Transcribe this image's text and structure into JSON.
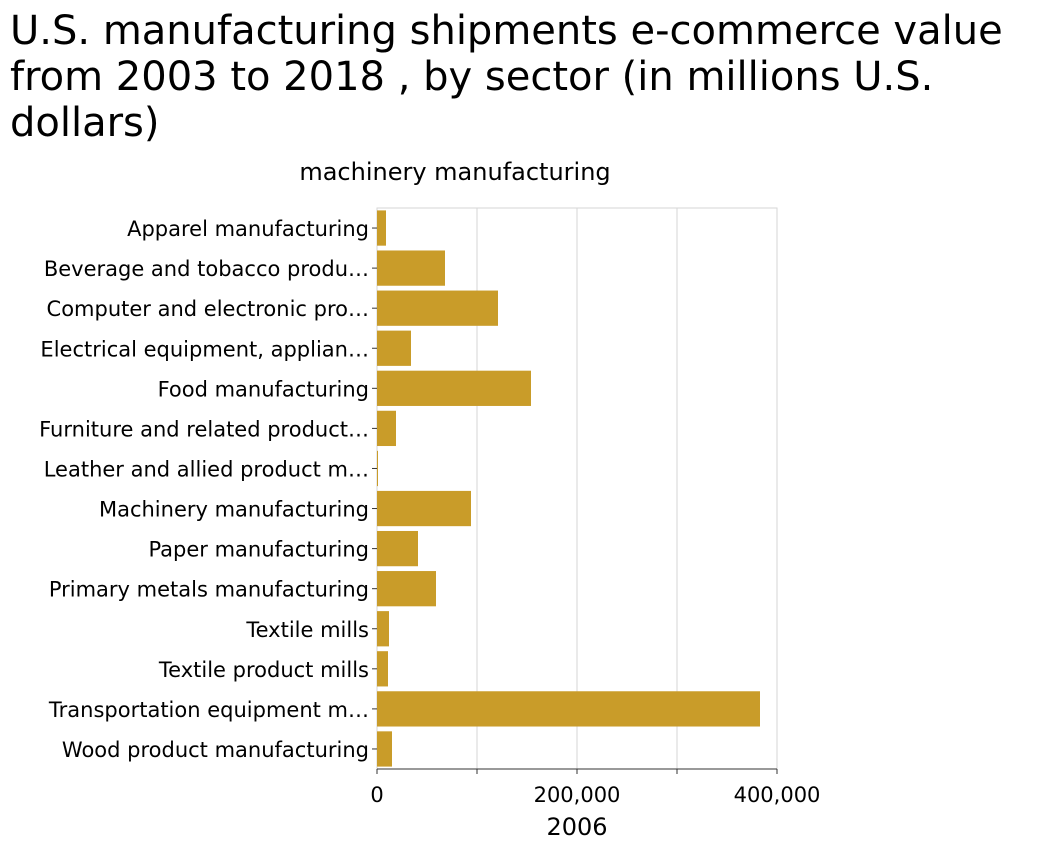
{
  "chart_data": {
    "type": "bar",
    "orientation": "horizontal",
    "title": "U.S. manufacturing shipments e-commerce value from 2003 to 2018 , by sector (in millions U.S. dollars)",
    "ylabel": "machinery manufacturing",
    "xlabel": "2006",
    "xlim": [
      0,
      400000
    ],
    "xticks": [
      0,
      200000,
      400000
    ],
    "xtick_labels": [
      "0",
      "200,000",
      "400,000"
    ],
    "grid": true,
    "bar_color": "#c99c29",
    "categories": [
      "Apparel manufacturing",
      "Beverage and tobacco produ…",
      "Computer and electronic pro…",
      "Electrical equipment, applian…",
      "Food manufacturing",
      "Furniture and related product…",
      "Leather and allied product m…",
      "Machinery manufacturing",
      "Paper manufacturing",
      "Primary metals manufacturing",
      "Textile mills",
      "Textile product mills",
      "Transportation equipment m…",
      "Wood product manufacturing"
    ],
    "values": [
      9000,
      68000,
      121000,
      34000,
      154000,
      19000,
      1000,
      94000,
      41000,
      59000,
      12000,
      11000,
      383000,
      15000
    ]
  }
}
